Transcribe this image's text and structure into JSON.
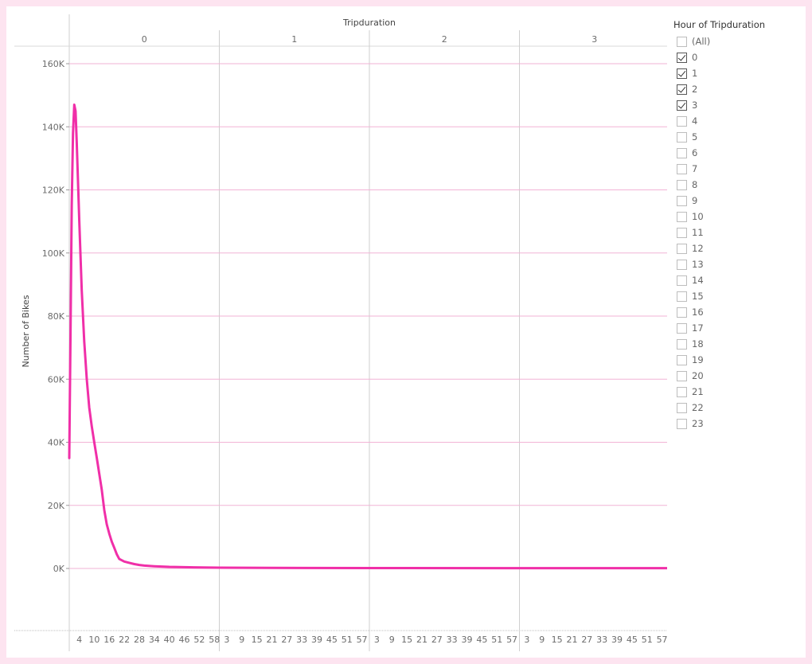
{
  "chart_data": {
    "type": "line",
    "title": "Tripduration",
    "ylabel": "Number of Bikes",
    "xlabel": "",
    "ylim": [
      0,
      160000
    ],
    "y_ticks": [
      0,
      20000,
      40000,
      60000,
      80000,
      100000,
      120000,
      140000,
      160000
    ],
    "y_tick_labels": [
      "0K",
      "20K",
      "40K",
      "60K",
      "80K",
      "100K",
      "120K",
      "140K",
      "160K"
    ],
    "panels": [
      "0",
      "1",
      "2",
      "3"
    ],
    "x_tick_labels": [
      [
        "4",
        "10",
        "16",
        "22",
        "28",
        "34",
        "40",
        "46",
        "52",
        "58"
      ],
      [
        "3",
        "9",
        "15",
        "21",
        "27",
        "33",
        "39",
        "45",
        "51",
        "57"
      ],
      [
        "3",
        "9",
        "15",
        "21",
        "27",
        "33",
        "39",
        "45",
        "51",
        "57"
      ],
      [
        "3",
        "9",
        "15",
        "21",
        "27",
        "33",
        "39",
        "45",
        "51",
        "57"
      ]
    ],
    "series": [
      {
        "name": "Number of Bikes",
        "color": "#f02fa8",
        "points": [
          [
            0,
            35000
          ],
          [
            0.5,
            75000
          ],
          [
            1,
            115000
          ],
          [
            1.5,
            138000
          ],
          [
            2,
            147000
          ],
          [
            2.5,
            145000
          ],
          [
            3,
            135000
          ],
          [
            4,
            110000
          ],
          [
            5,
            88000
          ],
          [
            6,
            72000
          ],
          [
            7,
            60000
          ],
          [
            8,
            51000
          ],
          [
            9,
            45000
          ],
          [
            10,
            40000
          ],
          [
            11,
            35000
          ],
          [
            12,
            30000
          ],
          [
            13,
            25000
          ],
          [
            14,
            18500
          ],
          [
            15,
            14000
          ],
          [
            16,
            11000
          ],
          [
            17,
            8500
          ],
          [
            18,
            6500
          ],
          [
            19,
            4500
          ],
          [
            20,
            3000
          ],
          [
            22,
            2200
          ],
          [
            24,
            1800
          ],
          [
            26,
            1400
          ],
          [
            28,
            1100
          ],
          [
            30,
            900
          ],
          [
            34,
            700
          ],
          [
            40,
            500
          ],
          [
            50,
            350
          ],
          [
            60,
            250
          ],
          [
            80,
            180
          ],
          [
            120,
            130
          ],
          [
            180,
            100
          ],
          [
            239,
            90
          ]
        ]
      }
    ],
    "x_range_minutes": [
      0,
      239
    ],
    "grid": true
  },
  "legend": {
    "title": "Hour of Tripduration",
    "items": [
      {
        "label": "(All)",
        "checked": false
      },
      {
        "label": "0",
        "checked": true
      },
      {
        "label": "1",
        "checked": true
      },
      {
        "label": "2",
        "checked": true
      },
      {
        "label": "3",
        "checked": true
      },
      {
        "label": "4",
        "checked": false
      },
      {
        "label": "5",
        "checked": false
      },
      {
        "label": "6",
        "checked": false
      },
      {
        "label": "7",
        "checked": false
      },
      {
        "label": "8",
        "checked": false
      },
      {
        "label": "9",
        "checked": false
      },
      {
        "label": "10",
        "checked": false
      },
      {
        "label": "11",
        "checked": false
      },
      {
        "label": "12",
        "checked": false
      },
      {
        "label": "13",
        "checked": false
      },
      {
        "label": "14",
        "checked": false
      },
      {
        "label": "15",
        "checked": false
      },
      {
        "label": "16",
        "checked": false
      },
      {
        "label": "17",
        "checked": false
      },
      {
        "label": "18",
        "checked": false
      },
      {
        "label": "19",
        "checked": false
      },
      {
        "label": "20",
        "checked": false
      },
      {
        "label": "21",
        "checked": false
      },
      {
        "label": "22",
        "checked": false
      },
      {
        "label": "23",
        "checked": false
      }
    ]
  },
  "colors": {
    "line": "#f02fa8",
    "gridline": "#f2b3d6",
    "page_border": "#fde4f0"
  }
}
